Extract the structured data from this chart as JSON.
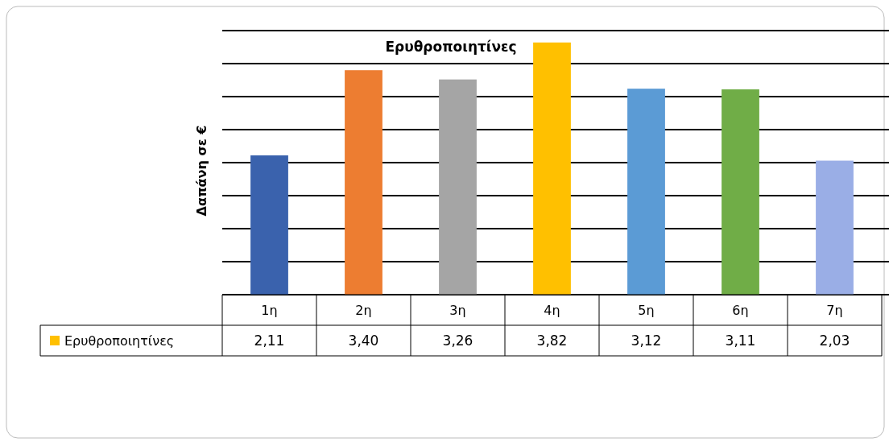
{
  "chart_data": {
    "type": "bar",
    "title": "Ερυθροποιητίνες",
    "ylabel": "Δαπάνη σε €",
    "categories": [
      "1η",
      "2η",
      "3η",
      "4η",
      "5η",
      "6η",
      "7η"
    ],
    "series": [
      {
        "name": "Ερυθροποιητίνες",
        "color": "#ffc000",
        "values": [
          2.11,
          3.4,
          3.26,
          3.82,
          3.12,
          3.11,
          2.03
        ],
        "value_labels": [
          "2,11",
          "3,40",
          "3,26",
          "3,82",
          "3,12",
          "3,11",
          "2,03"
        ],
        "colors": [
          "#3a62ad",
          "#ed7d31",
          "#a5a5a5",
          "#ffc000",
          "#5b9bd5",
          "#70ad47",
          "#9aaee6"
        ]
      }
    ],
    "ylim": [
      0,
      4
    ],
    "yticks": [
      {
        "value": 0,
        "label": null
      },
      {
        "value": 0.5,
        "label": null
      },
      {
        "value": 1,
        "label": null
      },
      {
        "value": 1.5,
        "label": null
      },
      {
        "value": 2,
        "label": null
      },
      {
        "value": 2.5,
        "label": null
      },
      {
        "value": 3,
        "label": null
      },
      {
        "value": 3.5,
        "label": null
      },
      {
        "value": 4,
        "label": null
      }
    ],
    "grid": "y",
    "legend": "bottom",
    "tick_labels": "x"
  }
}
